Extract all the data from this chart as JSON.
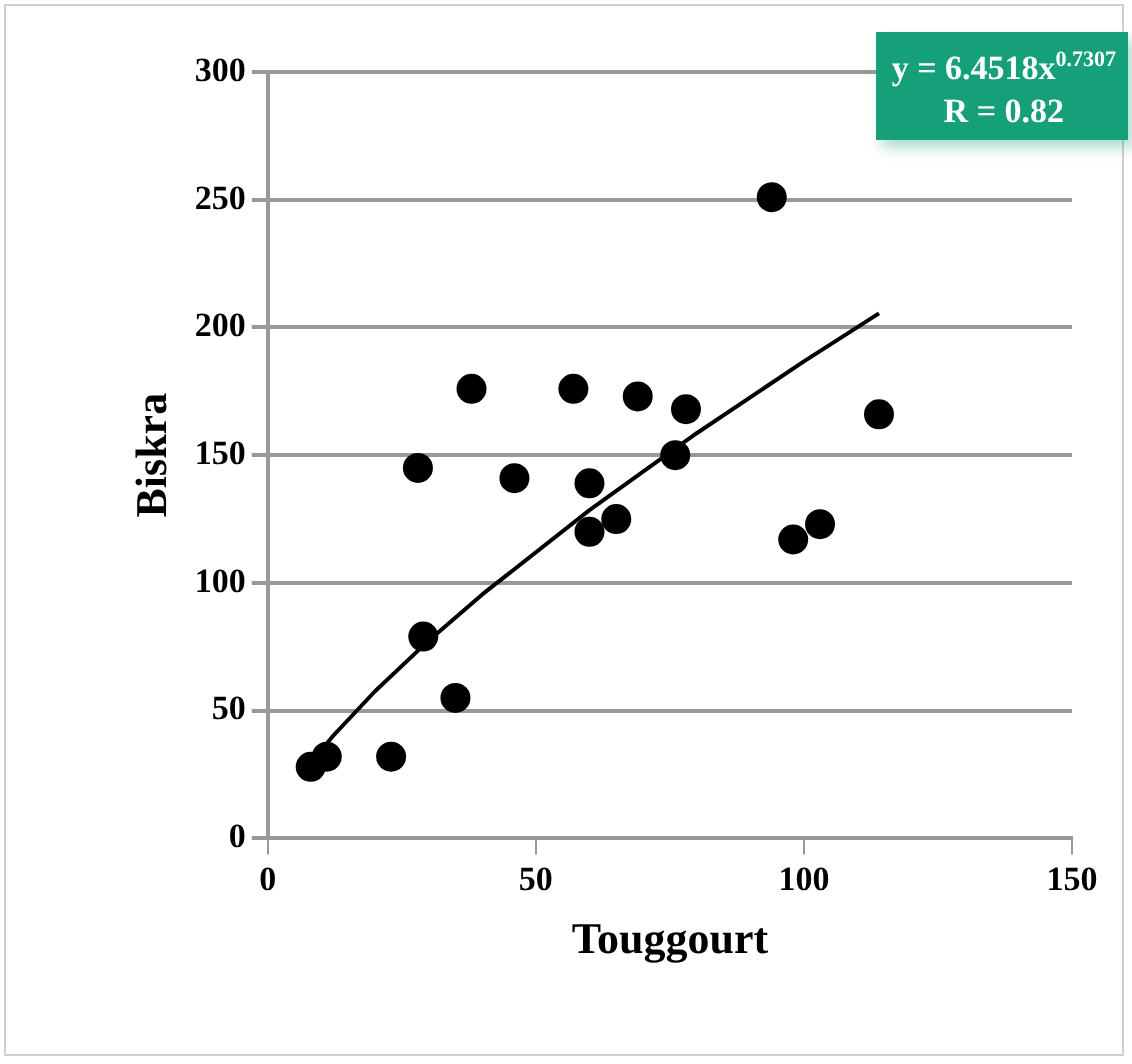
{
  "chart_data": {
    "type": "scatter",
    "xlabel": "Touggourt",
    "ylabel": "Biskra",
    "xlim": [
      0,
      150
    ],
    "xticks": [
      0,
      50,
      100,
      150
    ],
    "ylim": [
      0,
      300
    ],
    "yticks": [
      0,
      50,
      100,
      150,
      200,
      250,
      300
    ],
    "grid": "y",
    "legend": false,
    "marker": "circle",
    "annotations": [
      "y = 6.4518x$^{0.7307}$",
      "R = 0.82"
    ],
    "series": [
      {
        "color": "#000000",
        "x": [
          8,
          11,
          23,
          28,
          29,
          35,
          38,
          46,
          57,
          60,
          60,
          65,
          69,
          76,
          78,
          94,
          98,
          103,
          114
        ],
        "values": [
          28,
          32,
          32,
          145,
          79,
          55,
          176,
          141,
          176,
          139,
          120,
          125,
          173,
          150,
          168,
          251,
          117,
          123,
          166
        ]
      },
      {
        "type": "line",
        "color": "#000000",
        "marker": "none",
        "x": [
          8,
          12,
          20,
          30,
          40,
          60,
          80,
          100,
          114
        ],
        "values": [
          29.5,
          39.7,
          57.6,
          77.4,
          95.5,
          128.5,
          158.6,
          186.7,
          205.5
        ]
      }
    ]
  }
}
